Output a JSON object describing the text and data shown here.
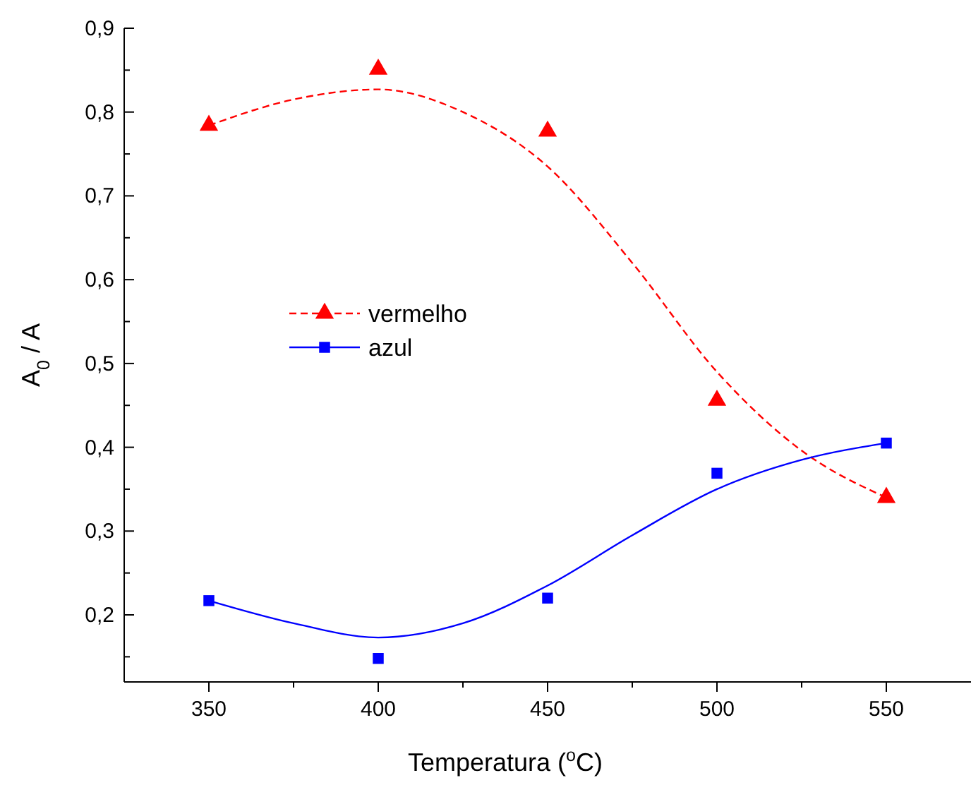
{
  "chart_data": {
    "type": "scatter",
    "xlabel": "Temperatura ($^{o}$C)",
    "ylabel": "A$_{0}$ / A",
    "xlim": [
      325,
      575
    ],
    "ylim": [
      0.12,
      0.9
    ],
    "xticks": [
      350,
      {
        "value": 375,
        "label": null
      },
      400,
      {
        "value": 425,
        "label": null
      },
      450,
      {
        "value": 475,
        "label": null
      },
      500,
      {
        "value": 525,
        "label": null
      },
      550
    ],
    "yticks": [
      {
        "value": 0.15,
        "label": null
      },
      {
        "value": 0.2,
        "label": "0,2"
      },
      {
        "value": 0.25,
        "label": null
      },
      {
        "value": 0.3,
        "label": "0,3"
      },
      {
        "value": 0.35,
        "label": null
      },
      {
        "value": 0.4,
        "label": "0,4"
      },
      {
        "value": 0.45,
        "label": null
      },
      {
        "value": 0.5,
        "label": "0,5"
      },
      {
        "value": 0.55,
        "label": null
      },
      {
        "value": 0.6,
        "label": "0,6"
      },
      {
        "value": 0.65,
        "label": null
      },
      {
        "value": 0.7,
        "label": "0,7"
      },
      {
        "value": 0.75,
        "label": null
      },
      {
        "value": 0.8,
        "label": "0,8"
      },
      {
        "value": 0.85,
        "label": null
      },
      {
        "value": 0.9,
        "label": "0,9"
      }
    ],
    "grid": false,
    "legend": "left",
    "series": [
      {
        "type": "line",
        "color": "#ff0000",
        "line_style": "dashed",
        "x": [
          350,
          375,
          400,
          425,
          450,
          475,
          500,
          525,
          550
        ],
        "values": [
          0.784,
          0.815,
          0.827,
          0.8,
          0.735,
          0.62,
          0.49,
          0.396,
          0.34
        ]
      },
      {
        "type": "line",
        "color": "#0000ff",
        "line_style": "solid",
        "x": [
          350,
          375,
          400,
          425,
          450,
          475,
          500,
          525,
          550
        ],
        "values": [
          0.217,
          0.19,
          0.173,
          0.19,
          0.235,
          0.295,
          0.35,
          0.385,
          0.405
        ]
      },
      {
        "name": "vermelho",
        "color": "#ff0000",
        "marker": "triangle",
        "x": [
          350,
          400,
          450,
          500,
          550
        ],
        "values": [
          0.784,
          0.851,
          0.777,
          0.456,
          0.34
        ]
      },
      {
        "name": "azul",
        "color": "#0000ff",
        "marker": "square",
        "x": [
          350,
          400,
          450,
          500,
          550
        ],
        "values": [
          0.217,
          0.148,
          0.22,
          0.369,
          0.405
        ]
      }
    ]
  }
}
